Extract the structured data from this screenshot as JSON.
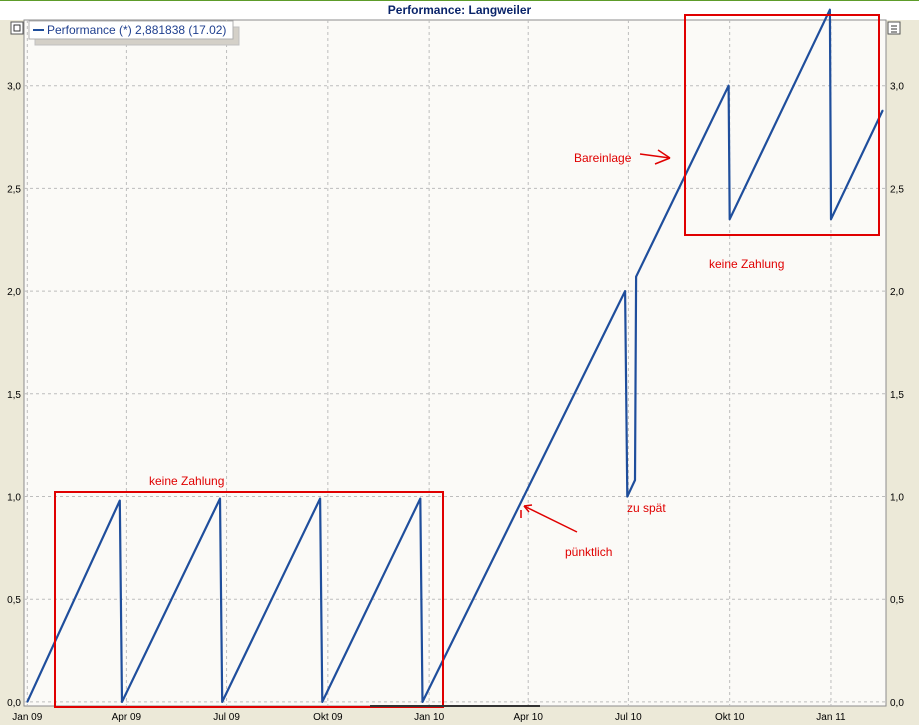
{
  "window": {
    "title": "Performance: Langweiler"
  },
  "legend": {
    "label": "Performance (*) 2,881838 (17.02)"
  },
  "annotations": {
    "keine_zahlung_left": "keine Zahlung",
    "keine_zahlung_right": "keine Zahlung",
    "puenktlich": "pünktlich",
    "zu_spaet": "zu spät",
    "bareinlage": "Bareinlage"
  },
  "colors": {
    "line": "#1f4e9c",
    "annotation": "#e00000",
    "plot_bg": "#fbfaf7",
    "grid": "#bdbdbd"
  },
  "chart_data": {
    "type": "line",
    "title": "Performance: Langweiler",
    "xlabel": "",
    "ylabel": "",
    "x_ticks": [
      "Jan 09",
      "Apr 09",
      "Jul 09",
      "Okt 09",
      "Jan 10",
      "Apr 10",
      "Jul 10",
      "Okt 10",
      "Jan 11"
    ],
    "y_ticks": [
      "0,0",
      "0,5",
      "1,0",
      "1,5",
      "2,0",
      "2,5",
      "3,0"
    ],
    "ylim": [
      -0.02,
      3.32
    ],
    "xlim": [
      "2008-12-29",
      "2011-02-20"
    ],
    "grid": true,
    "legend_position": "top-left",
    "series": [
      {
        "name": "Performance (*) 2,881838 (17.02)",
        "points": [
          [
            "2009-01-01",
            0.0
          ],
          [
            "2009-03-26",
            0.98
          ],
          [
            "2009-03-27",
            0.49
          ],
          [
            "2009-03-28",
            0.0
          ],
          [
            "2009-06-25",
            0.99
          ],
          [
            "2009-06-26",
            0.49
          ],
          [
            "2009-06-27",
            0.0
          ],
          [
            "2009-09-24",
            0.99
          ],
          [
            "2009-09-25",
            0.49
          ],
          [
            "2009-09-26",
            0.0
          ],
          [
            "2009-12-24",
            0.99
          ],
          [
            "2009-12-25",
            0.49
          ],
          [
            "2009-12-26",
            0.0
          ],
          [
            "2010-06-28",
            2.0
          ],
          [
            "2010-06-30",
            1.0
          ],
          [
            "2010-07-07",
            1.08
          ],
          [
            "2010-07-08",
            2.07
          ],
          [
            "2010-09-30",
            3.0
          ],
          [
            "2010-10-01",
            2.35
          ],
          [
            "2010-12-31",
            3.37
          ],
          [
            "2011-01-01",
            2.35
          ],
          [
            "2011-02-17",
            2.88
          ]
        ]
      }
    ]
  }
}
